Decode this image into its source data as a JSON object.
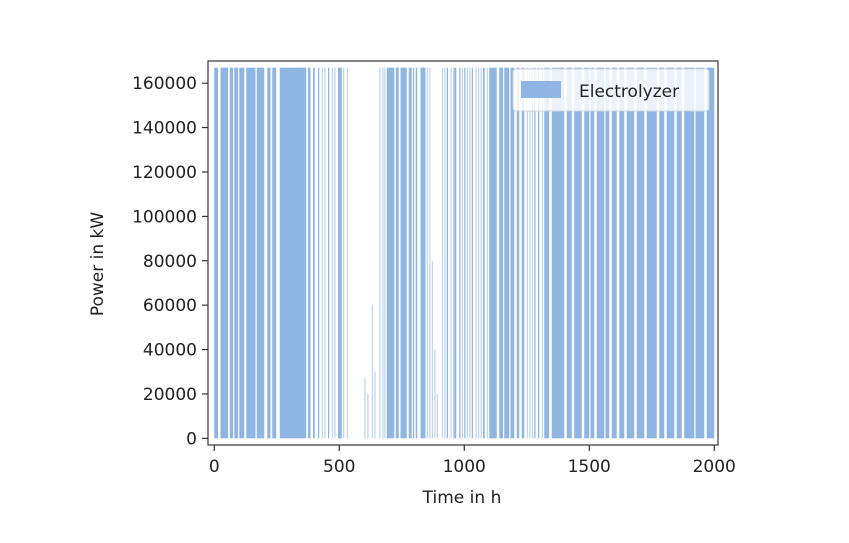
{
  "chart_data": {
    "type": "bar",
    "title": "",
    "xlabel": "Time in h",
    "ylabel": "Power in kW",
    "xlim": [
      -25,
      2015
    ],
    "ylim": [
      -3000,
      170000
    ],
    "xticks": [
      0,
      500,
      1000,
      1500,
      2000
    ],
    "yticks": [
      0,
      20000,
      40000,
      60000,
      80000,
      100000,
      120000,
      140000,
      160000
    ],
    "grid": false,
    "legend": {
      "position": "top-right",
      "entries": [
        "Electrolyzer"
      ]
    },
    "colors": {
      "series": "#8fb6e2",
      "axis": "#222222"
    },
    "series": [
      {
        "name": "Electrolyzer",
        "x_range": [
          0,
          2000
        ],
        "peak_value": 167000,
        "full_power_intervals": [
          [
            0,
            15
          ],
          [
            25,
            55
          ],
          [
            62,
            75
          ],
          [
            80,
            95
          ],
          [
            100,
            120
          ],
          [
            128,
            165
          ],
          [
            170,
            200
          ],
          [
            212,
            225
          ],
          [
            232,
            248
          ],
          [
            262,
            368
          ],
          [
            375,
            385
          ],
          [
            395,
            402
          ],
          [
            415,
            420
          ],
          [
            455,
            460
          ],
          [
            495,
            510
          ],
          [
            690,
            720
          ],
          [
            726,
            738
          ],
          [
            745,
            770
          ],
          [
            778,
            790
          ],
          [
            795,
            800
          ],
          [
            806,
            812
          ],
          [
            825,
            845
          ],
          [
            930,
            935
          ],
          [
            960,
            968
          ],
          [
            980,
            985
          ],
          [
            1000,
            1003
          ],
          [
            1030,
            1034
          ],
          [
            1075,
            1082
          ],
          [
            1100,
            1130
          ],
          [
            1140,
            1155
          ],
          [
            1160,
            1180
          ],
          [
            1185,
            1200
          ],
          [
            1210,
            1220
          ],
          [
            1230,
            1240
          ],
          [
            1280,
            1285
          ],
          [
            1295,
            1300
          ],
          [
            1320,
            1340
          ],
          [
            1350,
            1400
          ],
          [
            1410,
            1430
          ],
          [
            1440,
            1470
          ],
          [
            1480,
            1500
          ],
          [
            1505,
            1520
          ],
          [
            1530,
            1560
          ],
          [
            1565,
            1580
          ],
          [
            1590,
            1610
          ],
          [
            1620,
            1640
          ],
          [
            1650,
            1680
          ],
          [
            1690,
            1720
          ],
          [
            1730,
            1770
          ],
          [
            1780,
            1800
          ],
          [
            1810,
            1840
          ],
          [
            1850,
            1870
          ],
          [
            1880,
            1920
          ],
          [
            1925,
            1960
          ],
          [
            1970,
            2000
          ]
        ],
        "partial_bars": [
          [
            290,
            167000
          ],
          [
            350,
            167000
          ],
          [
            430,
            167000
          ],
          [
            440,
            167000
          ],
          [
            470,
            167000
          ],
          [
            480,
            167000
          ],
          [
            515,
            167000
          ],
          [
            530,
            167000
          ],
          [
            600,
            27000
          ],
          [
            612,
            20000
          ],
          [
            630,
            60000
          ],
          [
            640,
            30000
          ],
          [
            660,
            167000
          ],
          [
            672,
            167000
          ],
          [
            680,
            167000
          ],
          [
            850,
            167000
          ],
          [
            860,
            167000
          ],
          [
            870,
            80000
          ],
          [
            880,
            40000
          ],
          [
            890,
            20000
          ],
          [
            910,
            167000
          ],
          [
            920,
            167000
          ],
          [
            945,
            167000
          ],
          [
            955,
            167000
          ],
          [
            990,
            167000
          ],
          [
            1010,
            167000
          ],
          [
            1020,
            167000
          ],
          [
            1045,
            167000
          ],
          [
            1055,
            167000
          ],
          [
            1065,
            167000
          ],
          [
            1090,
            167000
          ],
          [
            1250,
            167000
          ],
          [
            1260,
            167000
          ],
          [
            1270,
            167000
          ],
          [
            1310,
            167000
          ]
        ]
      }
    ]
  }
}
